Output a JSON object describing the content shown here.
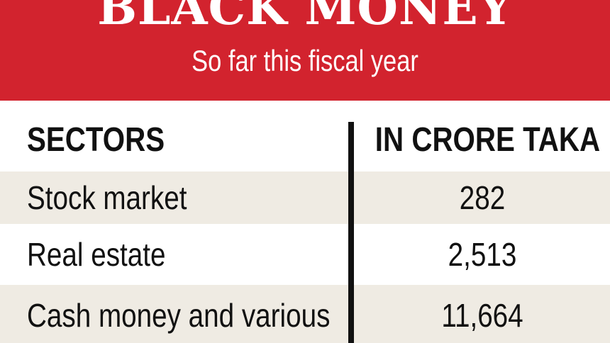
{
  "header": {
    "title": "BLACK MONEY",
    "subtitle": "So far this fiscal year"
  },
  "table": {
    "columns": [
      "SECTORS",
      "IN CRORE TAKA"
    ],
    "rows": [
      {
        "sector": "Stock market",
        "value": "282"
      },
      {
        "sector": "Real estate",
        "value": "2,513"
      },
      {
        "sector": "Cash money and various",
        "value": "11,664"
      }
    ]
  },
  "colors": {
    "banner": "#d2232e",
    "row_stripe": "#efebe3",
    "text": "#111111"
  },
  "chart_data": {
    "type": "table",
    "title": "BLACK MONEY",
    "subtitle": "So far this fiscal year",
    "columns": [
      "SECTORS",
      "IN CRORE TAKA"
    ],
    "categories": [
      "Stock market",
      "Real estate",
      "Cash money and various"
    ],
    "values": [
      282,
      2513,
      11664
    ]
  }
}
